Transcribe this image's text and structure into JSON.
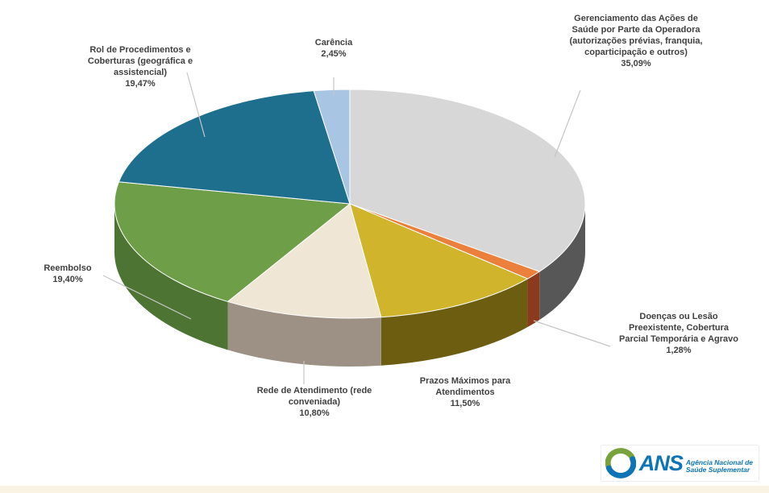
{
  "chart_data": {
    "type": "pie",
    "style": "3d",
    "title": "",
    "legend": "none",
    "value_format": "percent-comma-decimal",
    "start_angle_deg": 0,
    "direction": "clockwise",
    "series": [
      {
        "name": "Gerenciamento das Ações de Saúde por Parte da Operadora (autorizações prévias, franquia, coparticipação e outros)",
        "value": 35.09,
        "pct": "35,09%",
        "color": "#d7d7d7",
        "side": "#575757"
      },
      {
        "name": "Doenças ou Lesão Preexistente, Cobertura Parcial Temporária e Agravo",
        "value": 1.28,
        "pct": "1,28%",
        "color": "#ea803c",
        "side": "#8c3a1d"
      },
      {
        "name": "Prazos Máximos para Atendimentos",
        "value": 11.5,
        "pct": "11,50%",
        "color": "#d0b42c",
        "side": "#6d5d11"
      },
      {
        "name": "Rede de Atendimento (rede conveniada)",
        "value": 10.8,
        "pct": "10,80%",
        "color": "#efe6d6",
        "side": "#9c9184"
      },
      {
        "name": "Reembolso",
        "value": 19.4,
        "pct": "19,40%",
        "color": "#6f9e49",
        "side": "#4d7432"
      },
      {
        "name": "Rol de Procedimentos e Coberturas (geográfica e assistencial)",
        "value": 19.47,
        "pct": "19,47%",
        "color": "#1e6f8e",
        "side": "#123f52"
      },
      {
        "name": "Carência",
        "value": 2.45,
        "pct": "2,45%",
        "color": "#a9c5e4",
        "side": "#6d8cb2"
      }
    ]
  },
  "logo": {
    "text": "ANS",
    "tagline1": "Agência Nacional de",
    "tagline2": "Saúde Suplementar",
    "blue": "#0d74b5",
    "green": "#78a23c"
  },
  "styles": {
    "label_color": "#404040",
    "leader_color": "#c6c6c6",
    "background": "#ffffff",
    "bottom_strip": "#faf3e4"
  }
}
